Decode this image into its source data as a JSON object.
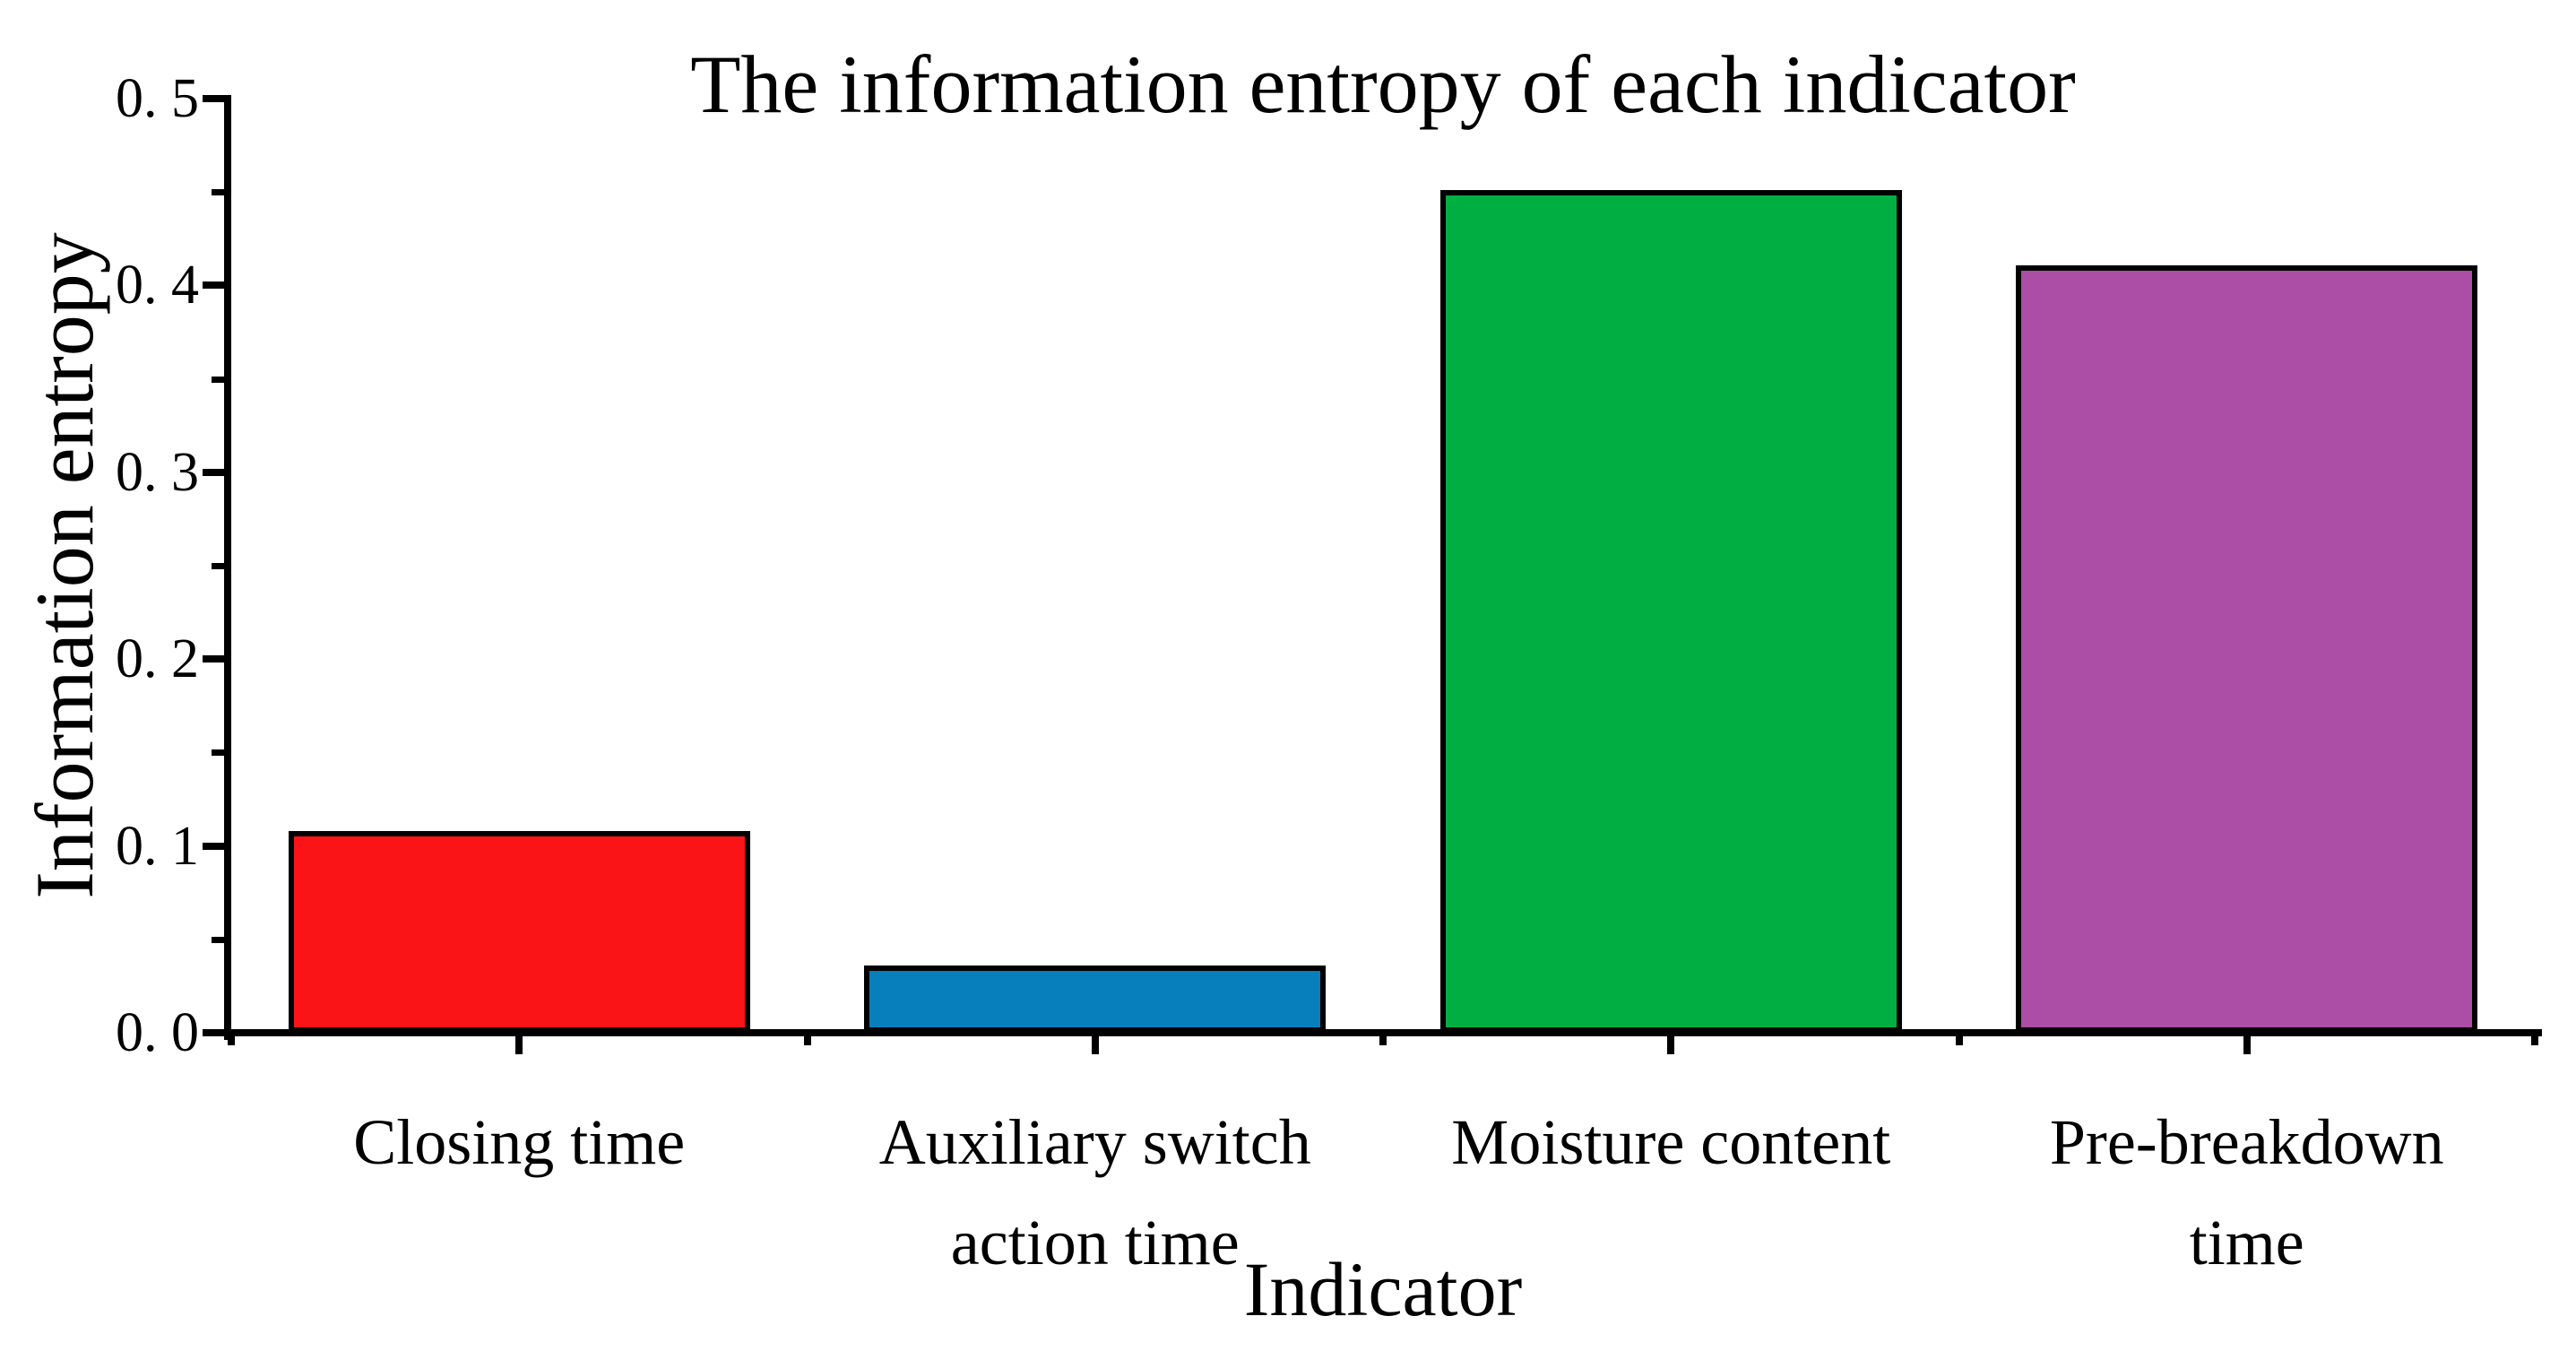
{
  "figure": {
    "background_color": "#ffffff",
    "text_color": "#000000"
  },
  "chart_data": {
    "type": "bar",
    "title": "The information entropy of each indicator",
    "xlabel": "Indicator",
    "ylabel": "Information entropy",
    "categories": [
      "Closing time",
      "Auxiliary switch action time",
      "Moisture content",
      "Pre-breakdown time"
    ],
    "category_label_lines": [
      [
        "Closing time"
      ],
      [
        "Auxiliary switch",
        "action time"
      ],
      [
        "Moisture content"
      ],
      [
        "Pre-breakdown",
        "time"
      ]
    ],
    "values": [
      0.107,
      0.035,
      0.45,
      0.41
    ],
    "bar_colors": [
      "#FA1418",
      "#077FBC",
      "#00AE42",
      "#AC4EA5"
    ],
    "bar_edge_color": "#000000",
    "axis_color": "#000000",
    "ylim": [
      0,
      0.5
    ],
    "ytick_labels": [
      "0. 0",
      "0. 1",
      "0. 2",
      "0. 3",
      "0. 4",
      "0. 5"
    ],
    "ytick_values": [
      0,
      0.1,
      0.2,
      0.3,
      0.4,
      0.5
    ],
    "y_minor_tick_values": [
      0.05,
      0.15,
      0.25,
      0.35,
      0.45
    ],
    "grid": false,
    "legend": "none"
  }
}
